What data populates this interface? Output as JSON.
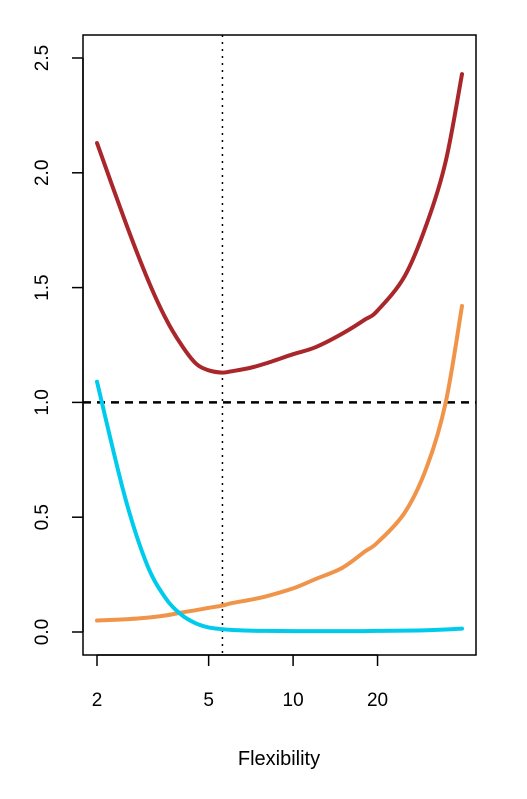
{
  "chart_data": {
    "type": "line",
    "title": "",
    "xlabel": "Flexibility",
    "ylabel": "",
    "x_scale": "log",
    "xlim": [
      2,
      40
    ],
    "ylim": [
      0,
      2.5
    ],
    "x_ticks": [
      2,
      5,
      10,
      20
    ],
    "y_ticks": [
      0.0,
      0.5,
      1.0,
      1.5,
      2.0,
      2.5
    ],
    "x_tick_labels": [
      "2",
      "5",
      "10",
      "20"
    ],
    "y_tick_labels": [
      "0.0",
      "0.5",
      "1.0",
      "1.5",
      "2.0",
      "2.5"
    ],
    "grid": false,
    "reference_lines": [
      {
        "orientation": "horizontal",
        "value": 1.0,
        "style": "dashed",
        "color": "#000000"
      },
      {
        "orientation": "vertical",
        "value": 5.6,
        "style": "dotted",
        "color": "#000000"
      }
    ],
    "series": [
      {
        "color": "#a9262b",
        "x": [
          2,
          2.5,
          3,
          3.5,
          4,
          4.5,
          5,
          5.6,
          6,
          7,
          8,
          10,
          12,
          15,
          18,
          20,
          25,
          30,
          35,
          40
        ],
        "y": [
          2.13,
          1.8,
          1.55,
          1.37,
          1.25,
          1.17,
          1.14,
          1.13,
          1.135,
          1.15,
          1.17,
          1.21,
          1.24,
          1.3,
          1.36,
          1.4,
          1.55,
          1.78,
          2.05,
          2.43
        ]
      },
      {
        "color": "#f0944a",
        "x": [
          2,
          2.5,
          3,
          3.5,
          4,
          4.5,
          5,
          5.6,
          6,
          7,
          8,
          10,
          12,
          15,
          18,
          20,
          25,
          30,
          35,
          40
        ],
        "y": [
          0.05,
          0.055,
          0.062,
          0.072,
          0.085,
          0.095,
          0.105,
          0.115,
          0.125,
          0.14,
          0.155,
          0.19,
          0.23,
          0.28,
          0.35,
          0.39,
          0.52,
          0.72,
          1.0,
          1.42
        ]
      },
      {
        "color": "#00cbec",
        "x": [
          2,
          2.5,
          3,
          3.5,
          4,
          4.5,
          5,
          5.6,
          6,
          7,
          8,
          10,
          12,
          15,
          18,
          20,
          25,
          30,
          35,
          40
        ],
        "y": [
          1.09,
          0.6,
          0.3,
          0.15,
          0.075,
          0.038,
          0.02,
          0.012,
          0.009,
          0.006,
          0.005,
          0.004,
          0.004,
          0.004,
          0.004,
          0.005,
          0.006,
          0.008,
          0.011,
          0.015
        ]
      }
    ]
  }
}
